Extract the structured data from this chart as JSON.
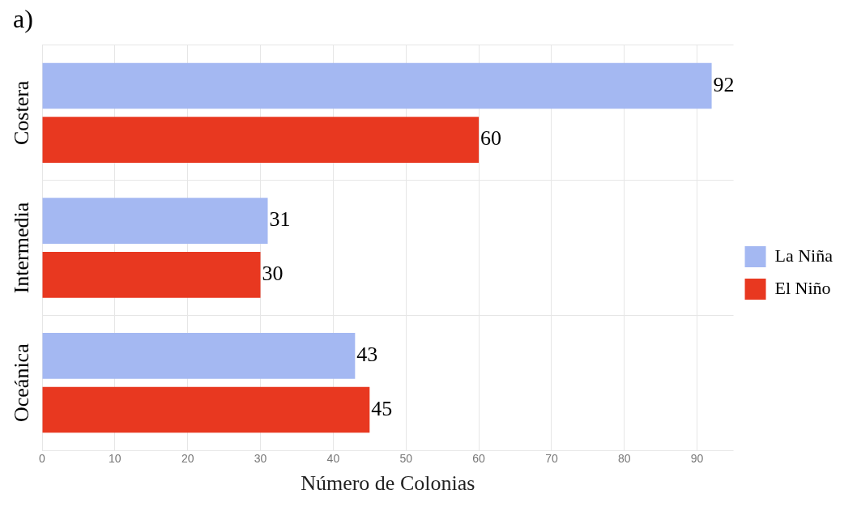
{
  "chart_data": {
    "type": "bar",
    "orientation": "horizontal",
    "title": "a)",
    "xlabel": "Número de Colonias",
    "categories": [
      "Costera",
      "Intermedia",
      "Oceánica"
    ],
    "series": [
      {
        "name": "La Niña",
        "color": "#a4b8f2",
        "values": [
          92,
          31,
          43
        ]
      },
      {
        "name": "El Niño",
        "color": "#e83820",
        "values": [
          60,
          30,
          45
        ]
      }
    ],
    "xlim": [
      0,
      95
    ],
    "xticks": [
      0,
      10,
      20,
      30,
      40,
      50,
      60,
      70,
      80,
      90
    ],
    "grid": true,
    "legend": "right",
    "data_labels": true
  }
}
